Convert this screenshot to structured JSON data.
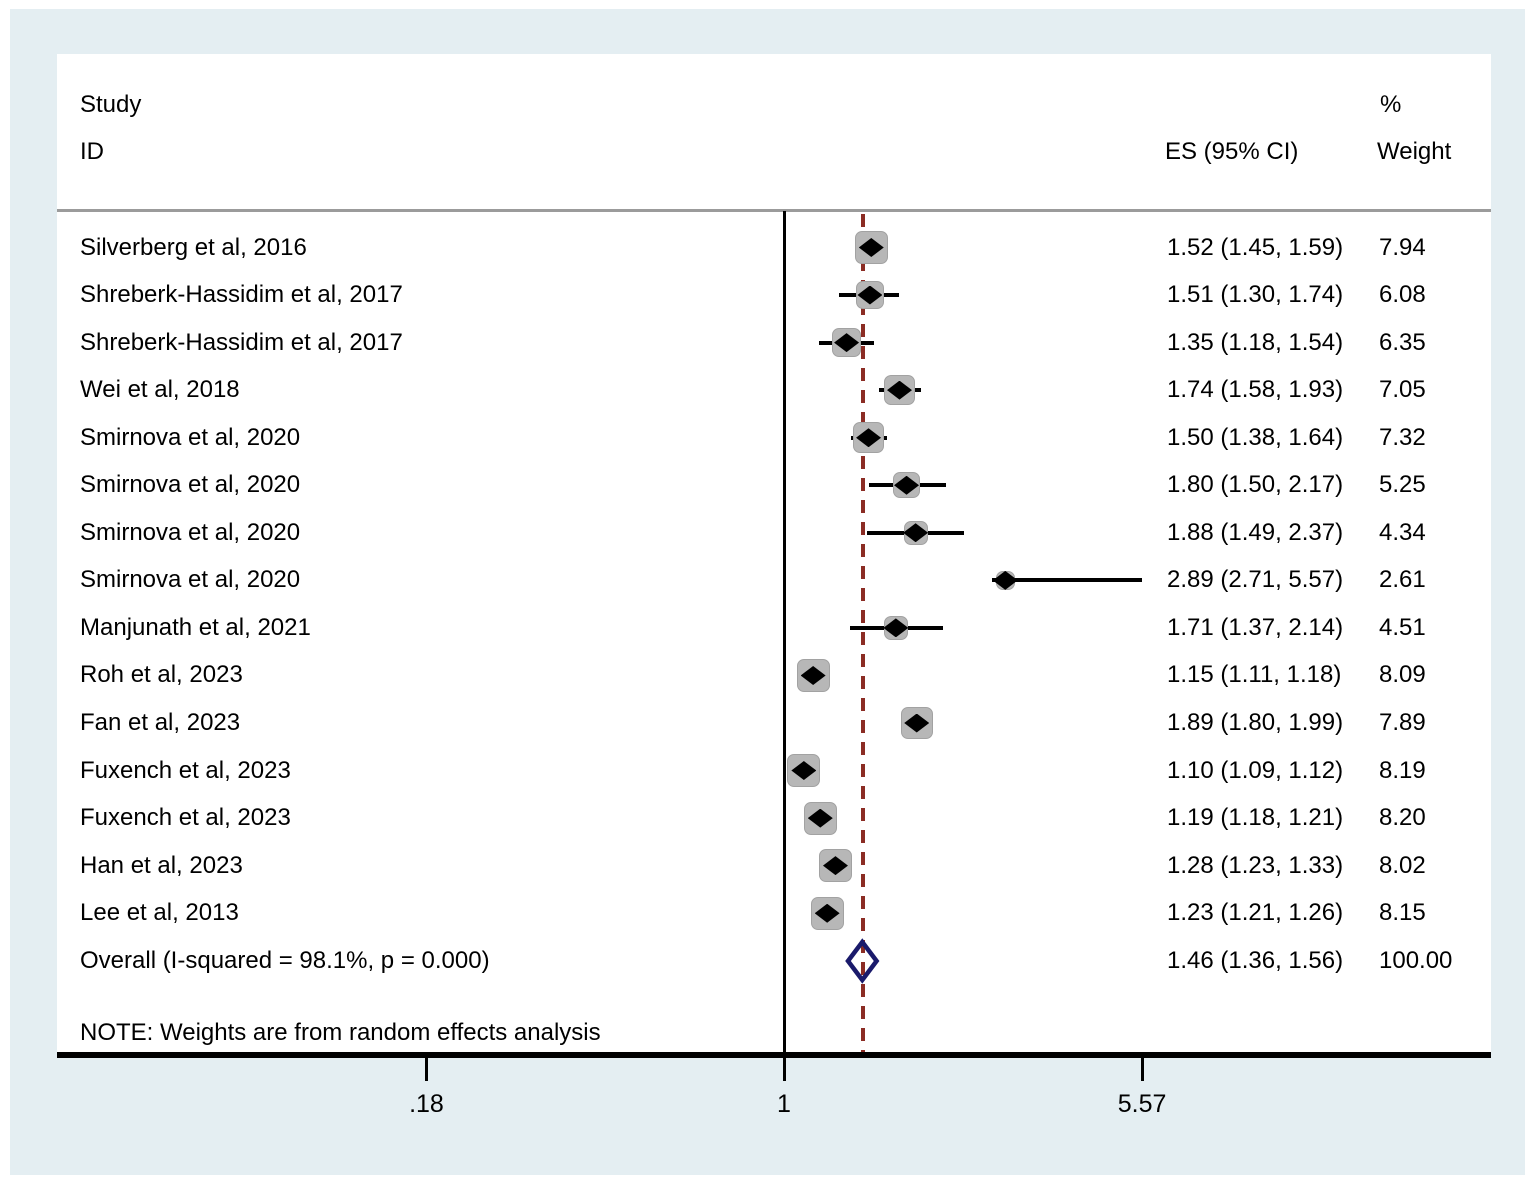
{
  "figure": {
    "headers": {
      "study_line1": "Study",
      "study_line2": "ID",
      "es": "ES (95% CI)",
      "pct": "%",
      "weight": "Weight"
    },
    "note": "NOTE: Weights are from random effects analysis"
  },
  "chart_data": {
    "type": "forest",
    "x_scale": "log",
    "xlim": [
      0.18,
      5.57
    ],
    "xticks": [
      {
        "label": ".18",
        "value": 0.18
      },
      {
        "label": "1",
        "value": 1
      },
      {
        "label": "5.57",
        "value": 5.57
      }
    ],
    "null_line_value": 1,
    "pooled_line_value": 1.46,
    "studies": [
      {
        "label": "Silverberg et al, 2016",
        "es": 1.52,
        "lo": 1.45,
        "hi": 1.59,
        "weight": 7.94,
        "es_label": "1.52 (1.45, 1.59)",
        "weight_label": "7.94"
      },
      {
        "label": "Shreberk-Hassidim et al, 2017",
        "es": 1.51,
        "lo": 1.3,
        "hi": 1.74,
        "weight": 6.08,
        "es_label": "1.51 (1.30, 1.74)",
        "weight_label": "6.08"
      },
      {
        "label": "Shreberk-Hassidim et al, 2017",
        "es": 1.35,
        "lo": 1.18,
        "hi": 1.54,
        "weight": 6.35,
        "es_label": "1.35 (1.18, 1.54)",
        "weight_label": "6.35"
      },
      {
        "label": "Wei et al, 2018",
        "es": 1.74,
        "lo": 1.58,
        "hi": 1.93,
        "weight": 7.05,
        "es_label": "1.74 (1.58, 1.93)",
        "weight_label": "7.05"
      },
      {
        "label": "Smirnova et al, 2020",
        "es": 1.5,
        "lo": 1.38,
        "hi": 1.64,
        "weight": 7.32,
        "es_label": "1.50 (1.38, 1.64)",
        "weight_label": "7.32"
      },
      {
        "label": "Smirnova et al, 2020",
        "es": 1.8,
        "lo": 1.5,
        "hi": 2.17,
        "weight": 5.25,
        "es_label": "1.80 (1.50, 2.17)",
        "weight_label": "5.25"
      },
      {
        "label": "Smirnova et al, 2020",
        "es": 1.88,
        "lo": 1.49,
        "hi": 2.37,
        "weight": 4.34,
        "es_label": "1.88 (1.49, 2.37)",
        "weight_label": "4.34"
      },
      {
        "label": "Smirnova et al, 2020",
        "es": 2.89,
        "lo": 2.71,
        "hi": 5.57,
        "weight": 2.61,
        "es_label": "2.89 (2.71, 5.57)",
        "weight_label": "2.61"
      },
      {
        "label": "Manjunath et al, 2021",
        "es": 1.71,
        "lo": 1.37,
        "hi": 2.14,
        "weight": 4.51,
        "es_label": "1.71 (1.37, 2.14)",
        "weight_label": "4.51"
      },
      {
        "label": "Roh et al, 2023",
        "es": 1.15,
        "lo": 1.11,
        "hi": 1.18,
        "weight": 8.09,
        "es_label": "1.15 (1.11, 1.18)",
        "weight_label": "8.09"
      },
      {
        "label": "Fan et al, 2023",
        "es": 1.89,
        "lo": 1.8,
        "hi": 1.99,
        "weight": 7.89,
        "es_label": "1.89 (1.80, 1.99)",
        "weight_label": "7.89"
      },
      {
        "label": "Fuxench et al, 2023",
        "es": 1.1,
        "lo": 1.09,
        "hi": 1.12,
        "weight": 8.19,
        "es_label": "1.10 (1.09, 1.12)",
        "weight_label": "8.19"
      },
      {
        "label": "Fuxench et al, 2023",
        "es": 1.19,
        "lo": 1.18,
        "hi": 1.21,
        "weight": 8.2,
        "es_label": "1.19 (1.18, 1.21)",
        "weight_label": "8.20"
      },
      {
        "label": "Han et al, 2023",
        "es": 1.28,
        "lo": 1.23,
        "hi": 1.33,
        "weight": 8.02,
        "es_label": "1.28 (1.23, 1.33)",
        "weight_label": "8.02"
      },
      {
        "label": "Lee et al, 2013",
        "es": 1.23,
        "lo": 1.21,
        "hi": 1.26,
        "weight": 8.15,
        "es_label": "1.23 (1.21, 1.26)",
        "weight_label": "8.15"
      }
    ],
    "overall": {
      "label": "Overall  (I-squared = 98.1%, p = 0.000)",
      "es": 1.46,
      "lo": 1.36,
      "hi": 1.56,
      "weight": 100.0,
      "es_label": "1.46 (1.36, 1.56)",
      "weight_label": "100.00"
    },
    "colors": {
      "background": "#e4eef2",
      "plot_background": "#ffffff",
      "square": "#b7b7b7",
      "point": "#000000",
      "pooled_line": "#8b2c24",
      "overall_diamond": "#1a1a6b",
      "header_rule": "#9b9b9b"
    }
  }
}
